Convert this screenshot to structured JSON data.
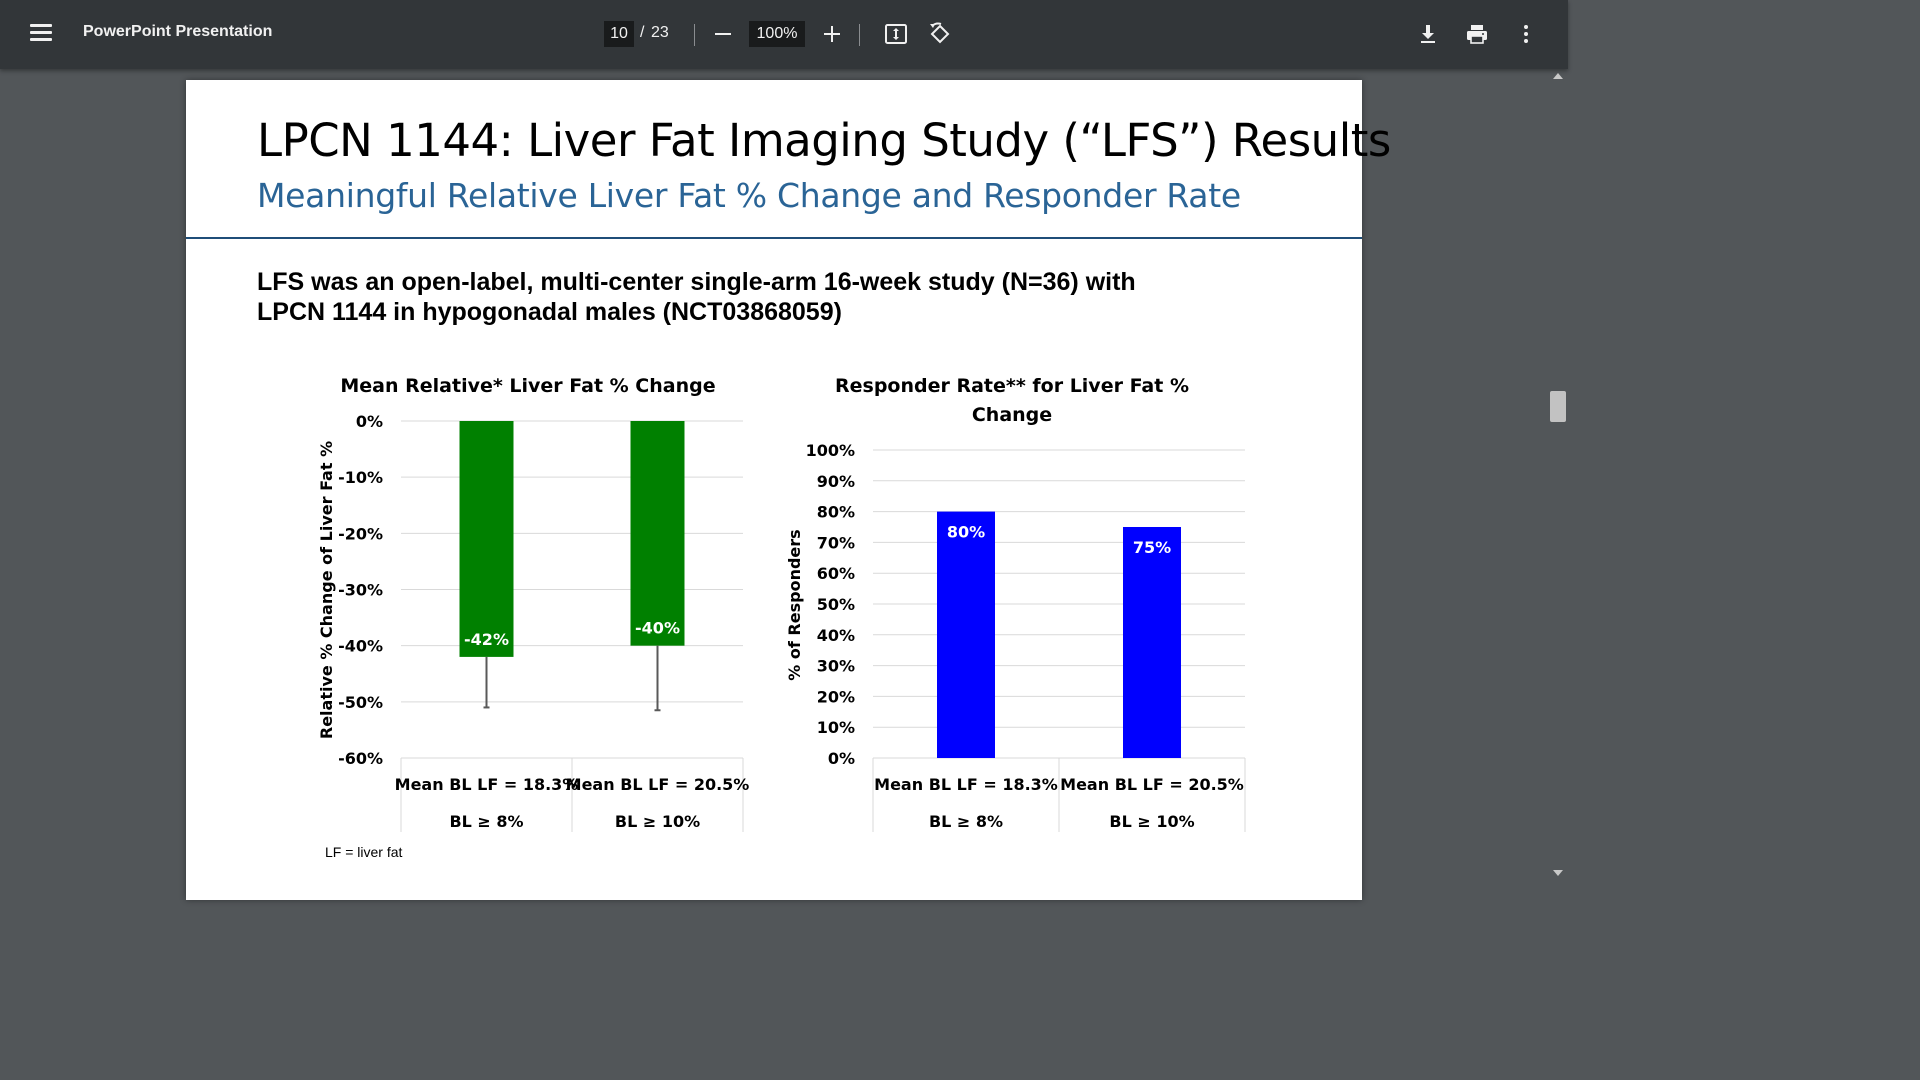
{
  "toolbar": {
    "title": "PowerPoint Presentation",
    "current_page": "10",
    "page_separator": "/",
    "total_pages": "23",
    "zoom": "100%",
    "icons": [
      "menu-icon",
      "zoom-out-icon",
      "zoom-in-icon",
      "fit-page-icon",
      "rotate-icon",
      "download-icon",
      "print-icon",
      "more-options-icon"
    ]
  },
  "slide": {
    "title": "LPCN 1144: Liver Fat Imaging Study (“LFS”) Results",
    "subtitle": "Meaningful Relative Liver Fat % Change and Responder Rate",
    "description_line1": "LFS was an open-label, multi-center single-arm 16-week study (N=36) with",
    "description_line2": "LPCN 1144 in hypogonadal males (NCT03868059)",
    "footnote": "LF = liver fat",
    "colors": {
      "title_rule": "#1f4e79",
      "subtitle": "#2a6496"
    }
  },
  "chart_data": [
    {
      "type": "bar",
      "title": "Mean Relative* Liver Fat % Change",
      "ylabel": "Relative % Change of Liver Fat %",
      "xlabel": "",
      "ylim": [
        -60,
        0
      ],
      "yticks": [
        0,
        -10,
        -20,
        -30,
        -40,
        -50,
        -60
      ],
      "ytick_labels": [
        "0%",
        "-10%",
        "-20%",
        "-30%",
        "-40%",
        "-50%",
        "-60%"
      ],
      "categories": [
        {
          "line1": "Mean BL LF = 18.3%",
          "line2": "BL ≥ 8%"
        },
        {
          "line1": "Mean BL LF = 20.5%",
          "line2": "BL ≥ 10%"
        }
      ],
      "values": [
        -42,
        -40
      ],
      "data_labels": [
        "-42%",
        "-40%"
      ],
      "error_bar_ends": [
        -51,
        -51.5
      ],
      "bar_color": "#008000",
      "grid": true
    },
    {
      "type": "bar",
      "title_line1": "Responder Rate** for Liver Fat %",
      "title_line2": "Change",
      "ylabel": "% of Responders",
      "xlabel": "",
      "ylim": [
        0,
        100
      ],
      "yticks": [
        100,
        90,
        80,
        70,
        60,
        50,
        40,
        30,
        20,
        10,
        0
      ],
      "ytick_labels": [
        "100%",
        "90%",
        "80%",
        "70%",
        "60%",
        "50%",
        "40%",
        "30%",
        "20%",
        "10%",
        "0%"
      ],
      "categories": [
        {
          "line1": "Mean BL LF = 18.3%",
          "line2": "BL ≥ 8%"
        },
        {
          "line1": "Mean BL LF = 20.5%",
          "line2": "BL ≥ 10%"
        }
      ],
      "values": [
        80,
        75
      ],
      "data_labels": [
        "80%",
        "75%"
      ],
      "bar_color": "#0000ff",
      "grid": true
    }
  ]
}
